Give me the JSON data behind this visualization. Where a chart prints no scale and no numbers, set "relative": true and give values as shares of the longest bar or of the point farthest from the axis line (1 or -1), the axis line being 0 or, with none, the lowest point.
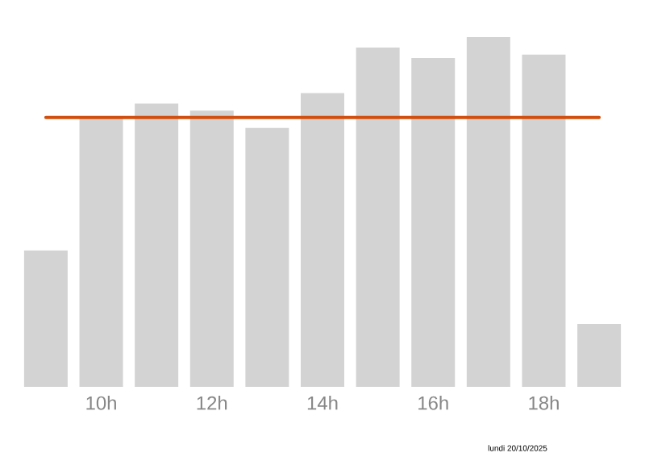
{
  "chart_data": {
    "type": "bar",
    "relative": true,
    "categories": [
      null,
      "10h",
      null,
      "12h",
      null,
      "14h",
      null,
      "16h",
      null,
      "18h",
      null
    ],
    "values": [
      0.39,
      0.77,
      0.81,
      0.79,
      0.74,
      0.84,
      0.97,
      0.94,
      1,
      0.95,
      0.18
    ],
    "color": "#d3d3d3",
    "ref_lines": [
      {
        "axis": "y",
        "value": 0.77,
        "color": "#d2500f"
      }
    ],
    "annotations": [
      "lundi 20/10/2025"
    ]
  }
}
